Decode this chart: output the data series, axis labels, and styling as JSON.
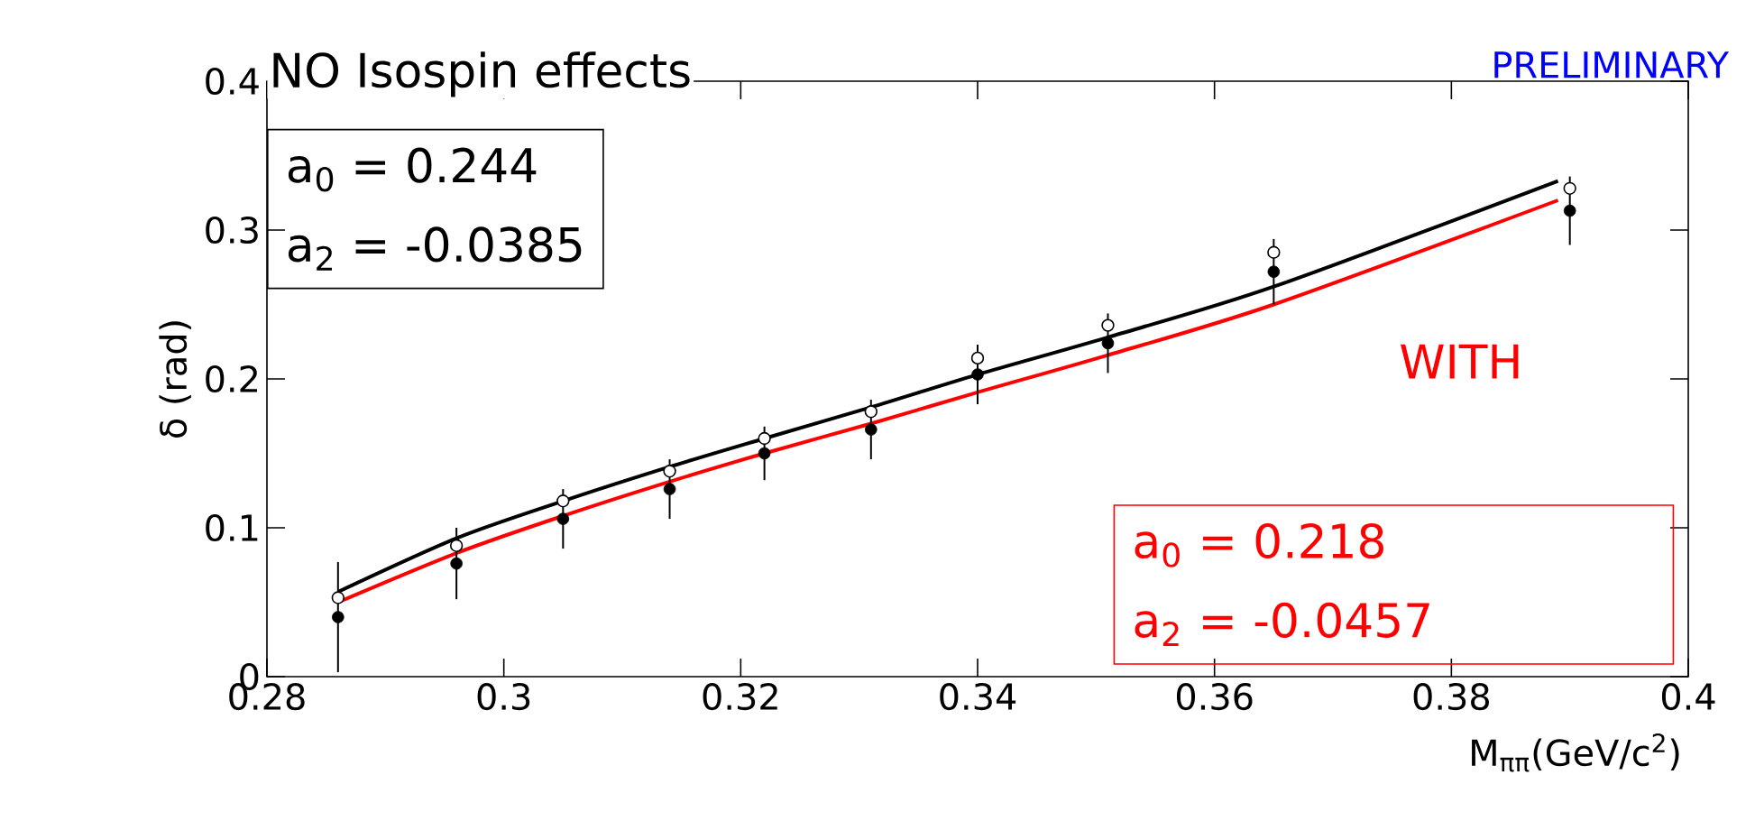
{
  "chart_data": {
    "type": "scatter",
    "title": "NO Isospin effects",
    "xlabel": "M$_{ππ}$(GeV/c$^{2}$)",
    "ylabel": "δ (rad)",
    "annotations": [
      "PRELIMINARY",
      "a$_{0}$ = 0.244",
      "a$_{2}$ = -0.0385",
      "WITH",
      "a$_{0}$ = 0.218",
      "a$_{2}$ = -0.0457"
    ],
    "x": [
      0.286,
      0.296,
      0.305,
      0.314,
      0.322,
      0.331,
      0.34,
      0.351,
      0.365,
      0.39
    ],
    "series": [
      {
        "type": "line",
        "color": "#000000",
        "marker": "none",
        "x": [
          0.286,
          0.296,
          0.305,
          0.314,
          0.322,
          0.331,
          0.34,
          0.351,
          0.365,
          0.389
        ],
        "values": [
          0.057,
          0.093,
          0.118,
          0.141,
          0.16,
          0.181,
          0.203,
          0.228,
          0.262,
          0.333
        ]
      },
      {
        "type": "line",
        "color": "#ff0000",
        "marker": "none",
        "x": [
          0.286,
          0.296,
          0.305,
          0.314,
          0.322,
          0.331,
          0.34,
          0.351,
          0.365,
          0.389
        ],
        "values": [
          0.05,
          0.083,
          0.108,
          0.131,
          0.15,
          0.17,
          0.191,
          0.216,
          0.25,
          0.32
        ]
      },
      {
        "color": "#000000",
        "values": [
          0.053,
          0.088,
          0.118,
          0.138,
          0.16,
          0.178,
          0.214,
          0.236,
          0.285,
          0.328
        ]
      },
      {
        "color": "#000000",
        "values": [
          0.04,
          0.076,
          0.106,
          0.126,
          0.15,
          0.166,
          0.203,
          0.224,
          0.272,
          0.313
        ],
        "errors": [
          0.037,
          0.024,
          0.02,
          0.02,
          0.018,
          0.02,
          0.02,
          0.02,
          0.022,
          0.023
        ]
      }
    ],
    "xlim": [
      0.28,
      0.4
    ],
    "xticks": [
      0.28,
      0.3,
      0.32,
      0.34,
      0.36,
      0.38,
      0.4
    ],
    "ylim": [
      0,
      0.4
    ],
    "yticks": [
      0,
      0.1,
      0.2,
      0.3,
      0.4
    ],
    "grid": false,
    "marker": "circle"
  }
}
